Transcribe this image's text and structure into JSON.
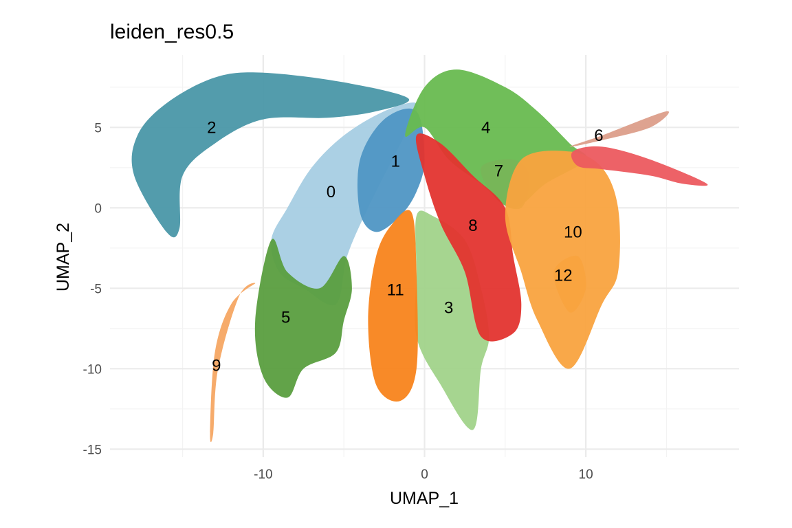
{
  "chart_data": {
    "type": "scatter",
    "title": "leiden_res0.5",
    "xlabel": "UMAP_1",
    "ylabel": "UMAP_2",
    "xlim": [
      -19.5,
      19.5
    ],
    "ylim": [
      -15.5,
      9.5
    ],
    "x_ticks": [
      -10,
      0,
      10
    ],
    "y_ticks": [
      5,
      0,
      -5,
      -10,
      -15
    ],
    "x_tick_labels": [
      "-10",
      "0",
      "10"
    ],
    "y_tick_labels": [
      "5",
      "0",
      "-5",
      "-10",
      "-15"
    ],
    "grid": true,
    "legend": "none",
    "clusters": [
      {
        "label": "0",
        "x": -5.8,
        "y": 1.0,
        "color": "#a6cee3",
        "outline": [
          [
            -9.5,
            -2
          ],
          [
            -9,
            -4
          ],
          [
            -7.5,
            -5
          ],
          [
            -5.5,
            -6
          ],
          [
            -4.8,
            -3
          ],
          [
            -3.5,
            0
          ],
          [
            -2,
            3
          ],
          [
            -1,
            5
          ],
          [
            -0.5,
            6.5
          ],
          [
            -2.5,
            6
          ],
          [
            -5,
            4.5
          ],
          [
            -7,
            2.5
          ],
          [
            -8.5,
            0
          ]
        ]
      },
      {
        "label": "1",
        "x": -1.8,
        "y": 2.9,
        "color": "#4f96c4",
        "outline": [
          [
            -4,
            -0.3
          ],
          [
            -3,
            -1.5
          ],
          [
            -1.5,
            -0.5
          ],
          [
            -0.5,
            1
          ],
          [
            0,
            3
          ],
          [
            -0.5,
            6
          ],
          [
            -2.5,
            5.5
          ],
          [
            -4,
            3
          ]
        ]
      },
      {
        "label": "2",
        "x": -13.2,
        "y": 5.0,
        "color": "#4a97a8",
        "outline": [
          [
            -18,
            2
          ],
          [
            -16,
            -1.5
          ],
          [
            -15.2,
            -1.3
          ],
          [
            -15,
            2
          ],
          [
            -13,
            4
          ],
          [
            -10,
            5.5
          ],
          [
            -6,
            5.6
          ],
          [
            -3,
            6
          ],
          [
            -1,
            6.8
          ],
          [
            -5,
            7.8
          ],
          [
            -10,
            8.4
          ],
          [
            -13,
            8.1
          ],
          [
            -16,
            6.5
          ],
          [
            -17.8,
            4.5
          ]
        ]
      },
      {
        "label": "3",
        "x": 1.5,
        "y": -6.2,
        "color": "#a1d38a",
        "outline": [
          [
            -0.5,
            -0.5
          ],
          [
            0.5,
            -0.5
          ],
          [
            2.5,
            -2
          ],
          [
            3.5,
            -5
          ],
          [
            4,
            -8
          ],
          [
            3.5,
            -10
          ],
          [
            3,
            -13.8
          ],
          [
            1,
            -11
          ],
          [
            -0.5,
            -8
          ],
          [
            -0.5,
            -4
          ]
        ]
      },
      {
        "label": "4",
        "x": 3.8,
        "y": 5.0,
        "color": "#68ba50",
        "outline": [
          [
            -1.2,
            4.5
          ],
          [
            0,
            7.5
          ],
          [
            2,
            8.6
          ],
          [
            5,
            7.5
          ],
          [
            7,
            6
          ],
          [
            9,
            4
          ],
          [
            10,
            3
          ],
          [
            7.5,
            1.5
          ],
          [
            5.5,
            0
          ],
          [
            3.5,
            1.5
          ],
          [
            1.5,
            3
          ],
          [
            0,
            5
          ]
        ]
      },
      {
        "label": "5",
        "x": -8.6,
        "y": -6.8,
        "color": "#5a9e3f",
        "outline": [
          [
            -10.5,
            -7
          ],
          [
            -10,
            -10.5
          ],
          [
            -8.5,
            -11.8
          ],
          [
            -7.5,
            -10
          ],
          [
            -5.5,
            -9
          ],
          [
            -5,
            -7
          ],
          [
            -4.5,
            -5
          ],
          [
            -5,
            -3
          ],
          [
            -6.5,
            -5
          ],
          [
            -8.5,
            -4
          ],
          [
            -9.5,
            -2
          ]
        ]
      },
      {
        "label": "6",
        "x": 10.8,
        "y": 4.5,
        "color": "#dc9e8a",
        "outline": [
          [
            9,
            3.8
          ],
          [
            11,
            4.5
          ],
          [
            15,
            6
          ],
          [
            14,
            5
          ],
          [
            11,
            4.2
          ]
        ]
      },
      {
        "label": "7",
        "x": 4.6,
        "y": 2.3,
        "color": "#77b558",
        "outline": [
          [
            3.5,
            2.5
          ],
          [
            5.5,
            3
          ],
          [
            6.5,
            2
          ],
          [
            6,
            0
          ],
          [
            4.5,
            0.5
          ]
        ]
      },
      {
        "label": "8",
        "x": 3.0,
        "y": -1.1,
        "color": "#e3342f",
        "outline": [
          [
            -0.5,
            4.5
          ],
          [
            1,
            4
          ],
          [
            3,
            2
          ],
          [
            5,
            0
          ],
          [
            5.5,
            -3
          ],
          [
            6,
            -6
          ],
          [
            5.5,
            -7.8
          ],
          [
            3.5,
            -8
          ],
          [
            2.5,
            -4
          ],
          [
            1,
            -1
          ],
          [
            0,
            2
          ]
        ]
      },
      {
        "label": "9",
        "x": -12.9,
        "y": -9.8,
        "color": "#f5a663",
        "outline": [
          [
            -13.3,
            -14
          ],
          [
            -13.1,
            -14
          ],
          [
            -12.8,
            -10
          ],
          [
            -11.5,
            -5.5
          ],
          [
            -10.5,
            -4.7
          ],
          [
            -12,
            -6
          ],
          [
            -13,
            -9
          ]
        ]
      },
      {
        "label": "10",
        "x": 9.2,
        "y": -1.5,
        "color": "#f9a33f",
        "outline": [
          [
            5,
            -0.5
          ],
          [
            6,
            3
          ],
          [
            9,
            3.5
          ],
          [
            11,
            2.5
          ],
          [
            12,
            0
          ],
          [
            12,
            -4
          ],
          [
            11,
            -6
          ],
          [
            9,
            -10
          ],
          [
            7,
            -7
          ],
          [
            6,
            -4
          ]
        ]
      },
      {
        "label": "11",
        "x": -1.8,
        "y": -5.1,
        "color": "#f8841c",
        "outline": [
          [
            -2,
            -1
          ],
          [
            -0.8,
            -0.3
          ],
          [
            -0.5,
            -4
          ],
          [
            -0.5,
            -10
          ],
          [
            -1.5,
            -12
          ],
          [
            -3,
            -11
          ],
          [
            -3.5,
            -7
          ],
          [
            -3,
            -3
          ]
        ]
      },
      {
        "label": "12",
        "x": 8.6,
        "y": -4.2,
        "color": "#f9a33f",
        "outline": [
          [
            8,
            -4
          ],
          [
            9.5,
            -3
          ],
          [
            10,
            -5
          ],
          [
            9,
            -6.5
          ]
        ]
      },
      {
        "label": "",
        "x": null,
        "y": null,
        "color": "#ec5a5f",
        "outline": [
          [
            9.2,
            3.5
          ],
          [
            11,
            3.8
          ],
          [
            14,
            3
          ],
          [
            17.5,
            1.5
          ],
          [
            16,
            1.5
          ],
          [
            14,
            2
          ],
          [
            11,
            2.4
          ],
          [
            9.5,
            2.6
          ]
        ]
      }
    ]
  }
}
